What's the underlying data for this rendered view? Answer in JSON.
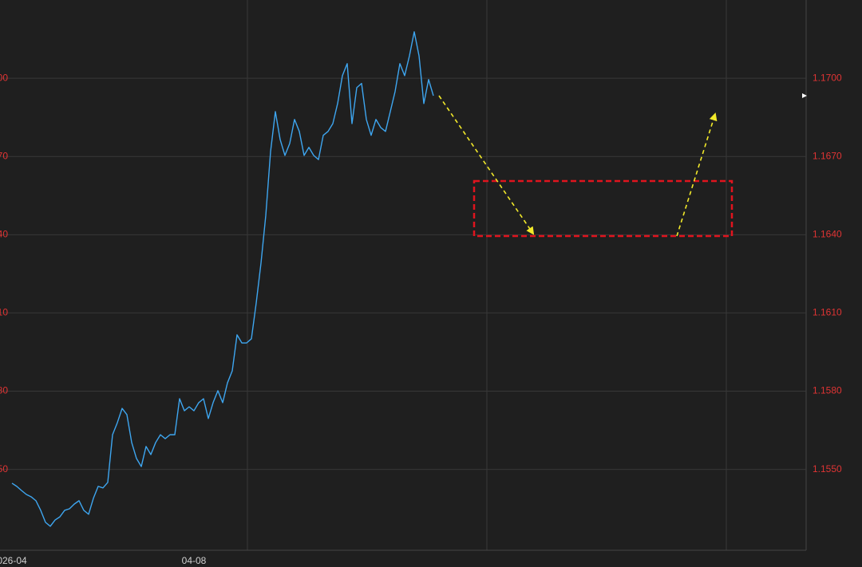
{
  "chart_data": {
    "type": "line",
    "categories": [
      "026-04",
      null,
      null,
      null,
      null,
      null,
      null,
      null,
      null,
      null,
      null,
      null,
      null,
      null,
      null,
      null,
      null,
      null,
      null,
      null,
      null,
      null,
      null,
      null,
      null,
      null,
      null,
      null,
      null,
      null,
      null,
      null,
      null,
      null,
      null,
      null,
      null,
      null,
      "04-08",
      null,
      null,
      null,
      null,
      null,
      null,
      null,
      null,
      null,
      null,
      null,
      null,
      null,
      null,
      null,
      null,
      null,
      null,
      null,
      null,
      null,
      null,
      null,
      null,
      null,
      null,
      null,
      null,
      null,
      null,
      null,
      null,
      null,
      null,
      null,
      null,
      null,
      null,
      null,
      null,
      null,
      null,
      null,
      null,
      null,
      null,
      null,
      null,
      null,
      null
    ],
    "values": [
      1.15447,
      1.15435,
      1.15419,
      1.15404,
      1.15395,
      1.1538,
      1.15343,
      1.15297,
      1.15282,
      1.15306,
      1.15318,
      1.15343,
      1.15349,
      1.15367,
      1.1538,
      1.15343,
      1.15328,
      1.15389,
      1.15435,
      1.15429,
      1.1545,
      1.15633,
      1.15679,
      1.15734,
      1.1571,
      1.15603,
      1.15542,
      1.15511,
      1.15588,
      1.15557,
      1.15603,
      1.15633,
      1.15618,
      1.15633,
      1.15633,
      1.15771,
      1.15725,
      1.1574,
      1.15725,
      1.15756,
      1.15771,
      1.15695,
      1.15756,
      1.15802,
      1.15756,
      1.15832,
      1.15878,
      1.16016,
      1.15985,
      1.15985,
      1.16001,
      1.16138,
      1.16291,
      1.16474,
      1.16719,
      1.16872,
      1.16765,
      1.16704,
      1.1675,
      1.16842,
      1.16796,
      1.16704,
      1.16735,
      1.16704,
      1.16688,
      1.16781,
      1.16796,
      1.16826,
      1.16903,
      1.1701,
      1.17056,
      1.16826,
      1.16964,
      1.1698,
      1.16842,
      1.16781,
      1.16842,
      1.16811,
      1.16796,
      1.16872,
      1.16949,
      1.17056,
      1.1701,
      1.17086,
      1.17178,
      1.17086,
      1.16903,
      1.16995,
      1.16933
    ],
    "color": "#3ea6f0",
    "ylim": [
      1.1519,
      1.173
    ],
    "yticks": [
      {
        "value": 1.155,
        "label": "1.1550"
      },
      {
        "value": 1.158,
        "label": "1.1580"
      },
      {
        "value": 1.161,
        "label": "1.1610"
      },
      {
        "value": 1.164,
        "label": "1.1640"
      },
      {
        "value": 1.167,
        "label": "1.1670"
      },
      {
        "value": 1.17,
        "label": "1.1700"
      }
    ],
    "grid": true
  }
}
